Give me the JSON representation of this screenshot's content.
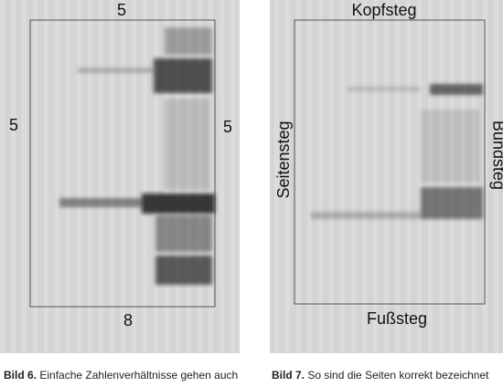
{
  "figures": [
    {
      "labels": {
        "top": "5",
        "left": "5",
        "right": "5",
        "bottom": "8"
      },
      "caption": {
        "number": "Bild 6.",
        "text": "Einfache Zahlenverhältnisse gehen auch"
      }
    },
    {
      "labels": {
        "top": "Kopfsteg",
        "left": "Seitensteg",
        "right": "Bundsteg",
        "bottom": "Fußsteg"
      },
      "caption": {
        "number": "Bild 7.",
        "text": "So sind die Seiten korrekt bezeichnet"
      }
    }
  ]
}
